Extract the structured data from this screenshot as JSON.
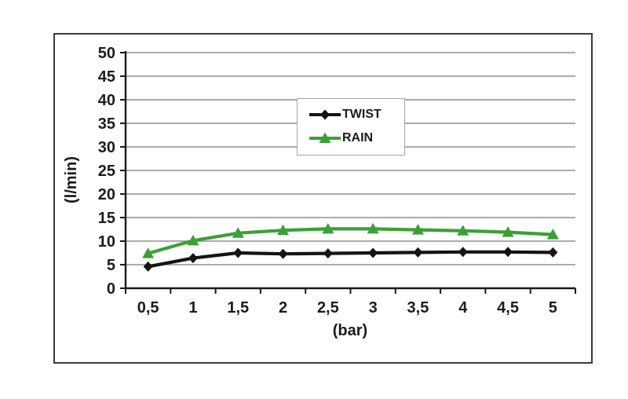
{
  "chart_data": {
    "type": "line",
    "title": "",
    "xlabel": "(bar)",
    "ylabel": "(l/min)",
    "x": [
      0.5,
      1,
      1.5,
      2,
      2.5,
      3,
      3.5,
      4,
      4.5,
      5
    ],
    "x_tick_labels": [
      "0,5",
      "1",
      "1,5",
      "2",
      "2,5",
      "3",
      "3,5",
      "4",
      "4,5",
      "5"
    ],
    "ylim": [
      0,
      50
    ],
    "ytick_step": 5,
    "y_tick_labels": [
      "0",
      "5",
      "10",
      "15",
      "20",
      "25",
      "30",
      "35",
      "40",
      "45",
      "50"
    ],
    "grid": true,
    "legend_position": "upper-center",
    "series": [
      {
        "name": "TWIST",
        "marker": "diamond",
        "color": "#141414",
        "values": [
          4.6,
          6.4,
          7.5,
          7.3,
          7.4,
          7.5,
          7.6,
          7.7,
          7.7,
          7.6
        ]
      },
      {
        "name": "RAIN",
        "marker": "triangle",
        "color": "#3aa135",
        "values": [
          7.4,
          10.1,
          11.7,
          12.3,
          12.6,
          12.6,
          12.4,
          12.2,
          11.9,
          11.4
        ]
      }
    ]
  },
  "colors": {
    "grid": "#909090",
    "axis": "#1a1a1a",
    "text": "#1b1b22",
    "frame_border": "#3b3b3b",
    "legend_border": "#a6a6a6",
    "background": "#ffffff"
  }
}
